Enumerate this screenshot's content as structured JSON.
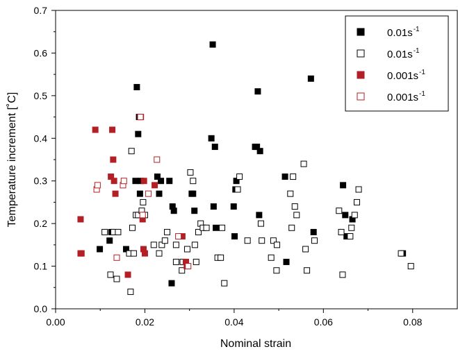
{
  "chart_data": {
    "type": "scatter",
    "title": "",
    "xlabel": "Nominal strain",
    "ylabel": "Temperature increment [˚C]",
    "xlim": [
      0.0,
      0.09
    ],
    "ylim": [
      0.0,
      0.7
    ],
    "x_ticks": [
      "0.00",
      "0.02",
      "0.04",
      "0.06",
      "0.08"
    ],
    "x_tick_values": [
      0.0,
      0.02,
      0.04,
      0.06,
      0.08
    ],
    "y_ticks": [
      "0.0",
      "0.1",
      "0.2",
      "0.3",
      "0.4",
      "0.5",
      "0.6",
      "0.7"
    ],
    "y_tick_values": [
      0.0,
      0.1,
      0.2,
      0.3,
      0.4,
      0.5,
      0.6,
      0.7
    ],
    "grid": false,
    "legend_position": "top-right",
    "series": [
      {
        "name": "0.01s",
        "name_superscript": "-1",
        "marker": "square-filled",
        "color": "#000000",
        "points": [
          [
            0.0099,
            0.14
          ],
          [
            0.0121,
            0.16
          ],
          [
            0.0125,
            0.18
          ],
          [
            0.0158,
            0.14
          ],
          [
            0.0179,
            0.3
          ],
          [
            0.0182,
            0.52
          ],
          [
            0.0185,
            0.41
          ],
          [
            0.0187,
            0.45
          ],
          [
            0.0189,
            0.27
          ],
          [
            0.0191,
            0.3
          ],
          [
            0.0228,
            0.31
          ],
          [
            0.0232,
            0.27
          ],
          [
            0.0236,
            0.3
          ],
          [
            0.0255,
            0.3
          ],
          [
            0.026,
            0.06
          ],
          [
            0.0262,
            0.24
          ],
          [
            0.0265,
            0.23
          ],
          [
            0.0305,
            0.27
          ],
          [
            0.0308,
            0.27
          ],
          [
            0.0311,
            0.23
          ],
          [
            0.0349,
            0.4
          ],
          [
            0.0352,
            0.62
          ],
          [
            0.0354,
            0.24
          ],
          [
            0.0357,
            0.38
          ],
          [
            0.0359,
            0.19
          ],
          [
            0.0399,
            0.24
          ],
          [
            0.0401,
            0.17
          ],
          [
            0.0403,
            0.28
          ],
          [
            0.0405,
            0.3
          ],
          [
            0.0447,
            0.38
          ],
          [
            0.0451,
            0.38
          ],
          [
            0.0453,
            0.51
          ],
          [
            0.0456,
            0.22
          ],
          [
            0.0458,
            0.37
          ],
          [
            0.0514,
            0.31
          ],
          [
            0.0517,
            0.11
          ],
          [
            0.0572,
            0.54
          ],
          [
            0.0578,
            0.18
          ],
          [
            0.0644,
            0.29
          ],
          [
            0.0649,
            0.22
          ],
          [
            0.0652,
            0.17
          ],
          [
            0.0665,
            0.21
          ],
          [
            0.0778,
            0.13
          ]
        ]
      },
      {
        "name": "0.01s",
        "name_superscript": "-1",
        "marker": "square-open",
        "color": "#000000",
        "points": [
          [
            0.011,
            0.18
          ],
          [
            0.0123,
            0.08
          ],
          [
            0.013,
            0.18
          ],
          [
            0.0137,
            0.07
          ],
          [
            0.014,
            0.18
          ],
          [
            0.0165,
            0.13
          ],
          [
            0.017,
            0.37
          ],
          [
            0.0172,
            0.19
          ],
          [
            0.0175,
            0.13
          ],
          [
            0.018,
            0.22
          ],
          [
            0.0185,
            0.22
          ],
          [
            0.0193,
            0.23
          ],
          [
            0.0196,
            0.25
          ],
          [
            0.02,
            0.22
          ],
          [
            0.0168,
            0.04
          ],
          [
            0.022,
            0.15
          ],
          [
            0.0232,
            0.13
          ],
          [
            0.0238,
            0.15
          ],
          [
            0.0245,
            0.16
          ],
          [
            0.025,
            0.18
          ],
          [
            0.027,
            0.15
          ],
          [
            0.0283,
            0.09
          ],
          [
            0.0285,
            0.11
          ],
          [
            0.0295,
            0.14
          ],
          [
            0.027,
            0.11
          ],
          [
            0.0302,
            0.32
          ],
          [
            0.0308,
            0.3
          ],
          [
            0.0312,
            0.15
          ],
          [
            0.0315,
            0.11
          ],
          [
            0.032,
            0.18
          ],
          [
            0.0325,
            0.2
          ],
          [
            0.033,
            0.19
          ],
          [
            0.0338,
            0.19
          ],
          [
            0.0363,
            0.12
          ],
          [
            0.037,
            0.12
          ],
          [
            0.0373,
            0.19
          ],
          [
            0.0378,
            0.06
          ],
          [
            0.0408,
            0.28
          ],
          [
            0.0412,
            0.31
          ],
          [
            0.043,
            0.16
          ],
          [
            0.0462,
            0.16
          ],
          [
            0.046,
            0.2
          ],
          [
            0.0483,
            0.12
          ],
          [
            0.0488,
            0.16
          ],
          [
            0.0495,
            0.09
          ],
          [
            0.0496,
            0.15
          ],
          [
            0.0526,
            0.27
          ],
          [
            0.0529,
            0.19
          ],
          [
            0.0532,
            0.31
          ],
          [
            0.0536,
            0.24
          ],
          [
            0.054,
            0.22
          ],
          [
            0.0556,
            0.34
          ],
          [
            0.056,
            0.14
          ],
          [
            0.0563,
            0.09
          ],
          [
            0.058,
            0.16
          ],
          [
            0.0635,
            0.23
          ],
          [
            0.064,
            0.18
          ],
          [
            0.0643,
            0.08
          ],
          [
            0.066,
            0.17
          ],
          [
            0.0663,
            0.19
          ],
          [
            0.067,
            0.22
          ],
          [
            0.0675,
            0.25
          ],
          [
            0.0679,
            0.28
          ],
          [
            0.0774,
            0.13
          ],
          [
            0.0796,
            0.1
          ]
        ]
      },
      {
        "name": "0.001s",
        "name_superscript": "-1",
        "marker": "square-filled",
        "color": "#b21f24",
        "points": [
          [
            0.0056,
            0.21
          ],
          [
            0.0056,
            0.13
          ],
          [
            0.0058,
            0.13
          ],
          [
            0.0089,
            0.42
          ],
          [
            0.0124,
            0.31
          ],
          [
            0.0127,
            0.42
          ],
          [
            0.0129,
            0.35
          ],
          [
            0.0131,
            0.3
          ],
          [
            0.0134,
            0.27
          ],
          [
            0.0162,
            0.08
          ],
          [
            0.0191,
            0.45
          ],
          [
            0.0195,
            0.21
          ],
          [
            0.0197,
            0.14
          ],
          [
            0.0198,
            0.3
          ],
          [
            0.02,
            0.13
          ],
          [
            0.0222,
            0.29
          ],
          [
            0.0284,
            0.17
          ],
          [
            0.0292,
            0.11
          ],
          [
            0.0294,
            0.1
          ]
        ]
      },
      {
        "name": "0.001s",
        "name_superscript": "-1",
        "marker": "square-open",
        "color": "#b21f24",
        "points": [
          [
            0.0092,
            0.28
          ],
          [
            0.0094,
            0.29
          ],
          [
            0.0137,
            0.12
          ],
          [
            0.0151,
            0.29
          ],
          [
            0.0153,
            0.3
          ],
          [
            0.019,
            0.45
          ],
          [
            0.0195,
            0.22
          ],
          [
            0.0208,
            0.27
          ],
          [
            0.0227,
            0.35
          ],
          [
            0.0275,
            0.17
          ],
          [
            0.0297,
            0.1
          ]
        ]
      }
    ]
  }
}
